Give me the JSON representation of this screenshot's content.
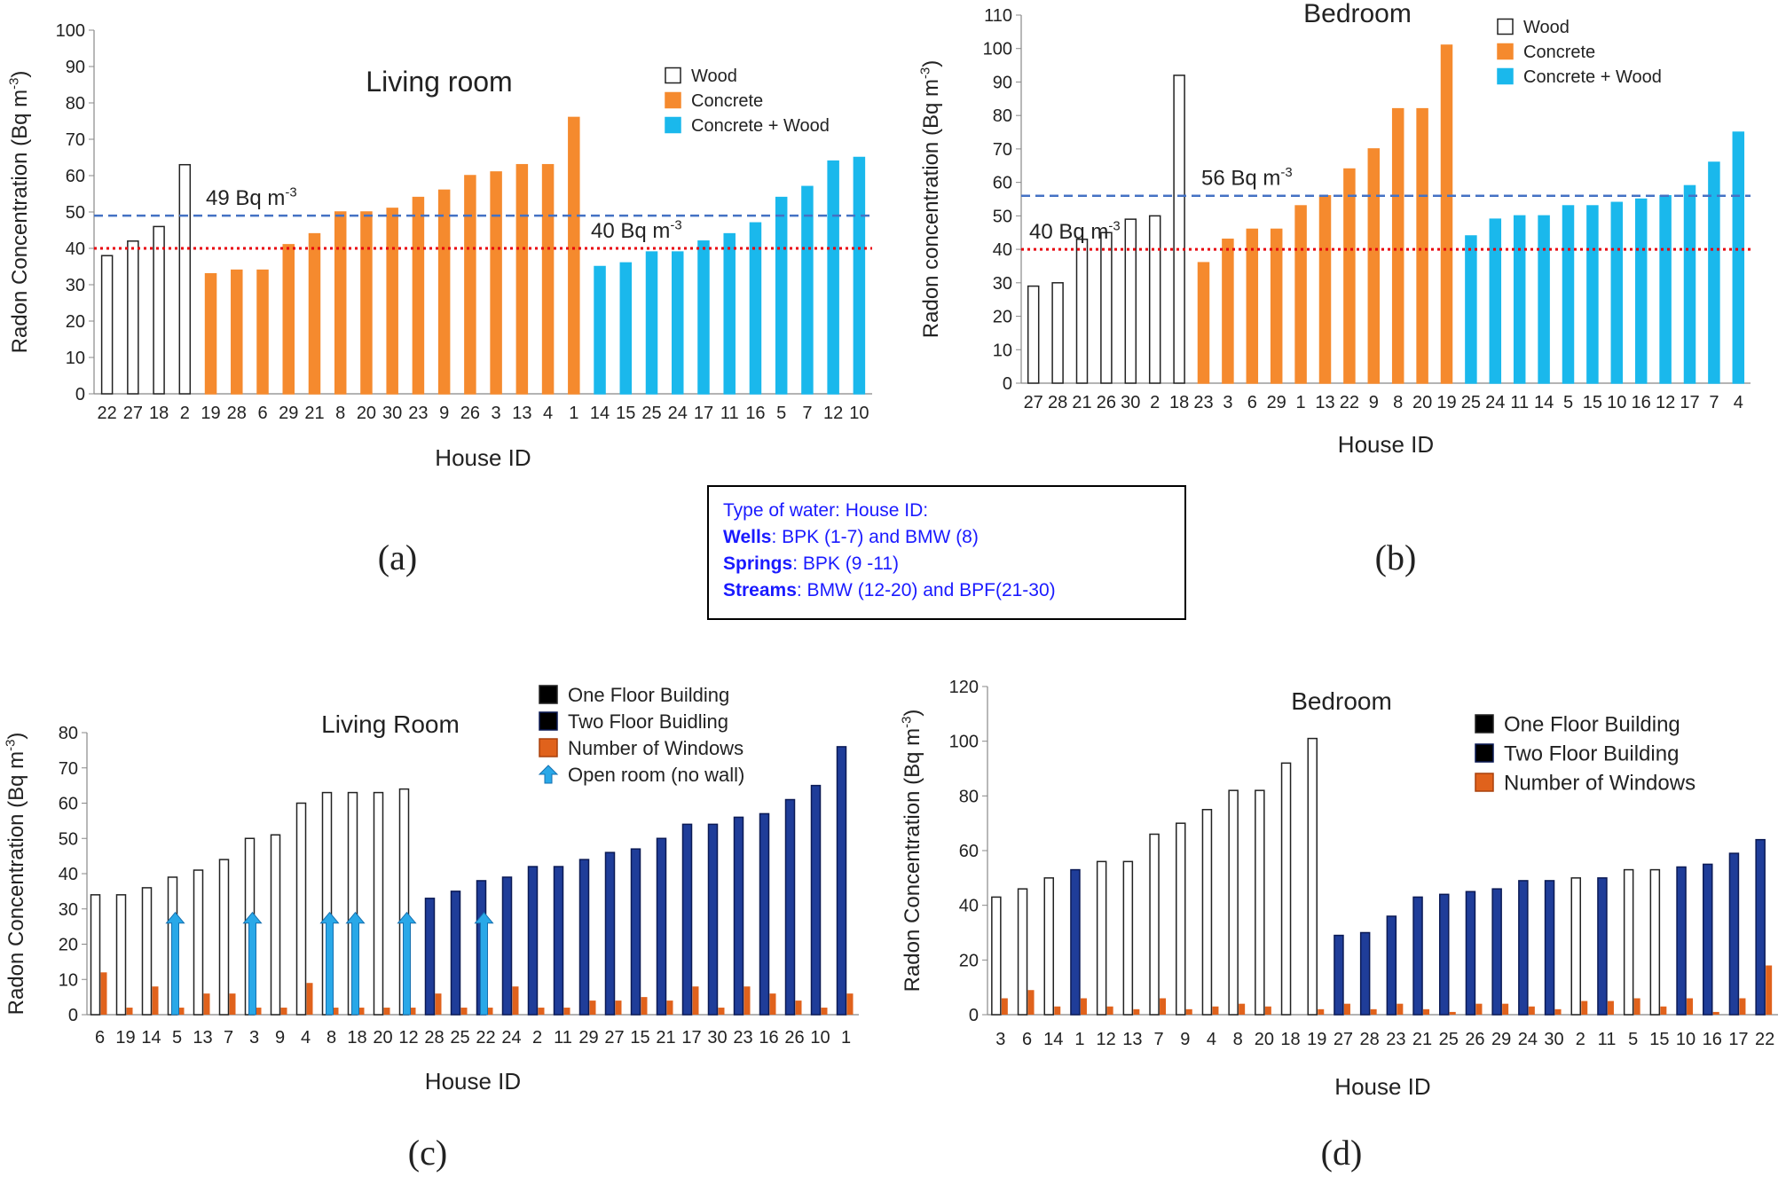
{
  "info_box": {
    "line1": "Type of water: House ID:",
    "wells_label": "Wells",
    "wells_text": ": BPK (1-7) and BMW (8)",
    "springs_label": "Springs",
    "springs_text": ": BPK (9 -11)",
    "streams_label": "Streams",
    "streams_text": ": BMW (12-20) and BPF(21-30)"
  },
  "colors": {
    "wood": "#ffffff",
    "concrete": "#f58a2e",
    "concrete_wood": "#1ab8ec",
    "one_floor": "#ffffff",
    "two_floor": "#1f3d99",
    "windows": "#e0621c",
    "arrow": "#29a8e8",
    "ref_red": "#e8000b",
    "ref_blue": "#4472c4"
  },
  "chart_data": [
    {
      "id": "a",
      "type": "bar",
      "panel_label": "(a)",
      "title": "Living room",
      "xlabel": "House ID",
      "ylabel": "Radon Concentration (Bq m",
      "ylabel_sup": "-3",
      "ylabel_end": ")",
      "ylim": [
        0,
        100
      ],
      "ytick_step": 10,
      "categories": [
        "22",
        "27",
        "18",
        "2",
        "19",
        "28",
        "6",
        "29",
        "21",
        "8",
        "20",
        "30",
        "23",
        "9",
        "26",
        "3",
        "13",
        "4",
        "1",
        "14",
        "15",
        "25",
        "24",
        "17",
        "11",
        "16",
        "5",
        "7",
        "12",
        "10"
      ],
      "values": [
        38,
        42,
        46,
        63,
        33,
        34,
        34,
        41,
        44,
        50,
        50,
        51,
        54,
        56,
        60,
        61,
        63,
        63,
        76,
        35,
        36,
        39,
        39,
        42,
        44,
        47,
        54,
        57,
        64,
        65
      ],
      "groups": [
        "wood",
        "wood",
        "wood",
        "wood",
        "concrete",
        "concrete",
        "concrete",
        "concrete",
        "concrete",
        "concrete",
        "concrete",
        "concrete",
        "concrete",
        "concrete",
        "concrete",
        "concrete",
        "concrete",
        "concrete",
        "concrete",
        "concrete_wood",
        "concrete_wood",
        "concrete_wood",
        "concrete_wood",
        "concrete_wood",
        "concrete_wood",
        "concrete_wood",
        "concrete_wood",
        "concrete_wood",
        "concrete_wood",
        "concrete_wood"
      ],
      "legend": [
        {
          "key": "wood",
          "label": "Wood"
        },
        {
          "key": "concrete",
          "label": "Concrete"
        },
        {
          "key": "concrete_wood",
          "label": "Concrete + Wood"
        }
      ],
      "ref_lines": [
        {
          "value": 49,
          "label": "49 Bq m",
          "sup": "-3",
          "style": "blue"
        },
        {
          "value": 40,
          "label": "40 Bq m",
          "sup": "-3",
          "style": "red"
        }
      ]
    },
    {
      "id": "b",
      "type": "bar",
      "panel_label": "(b)",
      "title": "Bedroom",
      "xlabel": "House ID",
      "ylabel": "Radon concentration (Bq m",
      "ylabel_sup": "-3",
      "ylabel_end": ")",
      "ylim": [
        0,
        110
      ],
      "ytick_step": 10,
      "categories": [
        "27",
        "28",
        "21",
        "26",
        "30",
        "2",
        "18",
        "23",
        "3",
        "6",
        "29",
        "1",
        "13",
        "22",
        "9",
        "8",
        "20",
        "19",
        "25",
        "24",
        "11",
        "14",
        "5",
        "15",
        "10",
        "16",
        "12",
        "17",
        "7",
        "4"
      ],
      "values": [
        29,
        30,
        43,
        45,
        49,
        50,
        92,
        36,
        43,
        46,
        46,
        53,
        56,
        64,
        70,
        82,
        82,
        101,
        44,
        49,
        50,
        50,
        53,
        53,
        54,
        55,
        56,
        59,
        66,
        75
      ],
      "groups": [
        "wood",
        "wood",
        "wood",
        "wood",
        "wood",
        "wood",
        "wood",
        "concrete",
        "concrete",
        "concrete",
        "concrete",
        "concrete",
        "concrete",
        "concrete",
        "concrete",
        "concrete",
        "concrete",
        "concrete",
        "concrete_wood",
        "concrete_wood",
        "concrete_wood",
        "concrete_wood",
        "concrete_wood",
        "concrete_wood",
        "concrete_wood",
        "concrete_wood",
        "concrete_wood",
        "concrete_wood",
        "concrete_wood",
        "concrete_wood"
      ],
      "legend": [
        {
          "key": "wood",
          "label": "Wood"
        },
        {
          "key": "concrete",
          "label": "Concrete"
        },
        {
          "key": "concrete_wood",
          "label": "Concrete + Wood"
        }
      ],
      "ref_lines": [
        {
          "value": 56,
          "label": "56 Bq m",
          "sup": "-3",
          "style": "blue"
        },
        {
          "value": 40,
          "label": "40 Bq m",
          "sup": "-3",
          "style": "red"
        }
      ]
    },
    {
      "id": "c",
      "type": "bar",
      "panel_label": "(c)",
      "title": "Living Room",
      "xlabel": "House ID",
      "ylabel": "Radon Concentration (Bq m",
      "ylabel_sup": "-3",
      "ylabel_end": ")",
      "ylim": [
        0,
        80
      ],
      "ytick_step": 10,
      "categories": [
        "6",
        "19",
        "14",
        "5",
        "13",
        "7",
        "3",
        "9",
        "4",
        "8",
        "18",
        "20",
        "12",
        "28",
        "25",
        "22",
        "24",
        "2",
        "11",
        "29",
        "27",
        "15",
        "21",
        "17",
        "30",
        "23",
        "16",
        "26",
        "10",
        "1"
      ],
      "values": [
        34,
        34,
        36,
        39,
        41,
        44,
        50,
        51,
        60,
        63,
        63,
        63,
        64,
        33,
        35,
        38,
        39,
        42,
        42,
        44,
        46,
        47,
        50,
        54,
        54,
        56,
        57,
        61,
        65,
        76
      ],
      "floors": [
        "one",
        "one",
        "one",
        "one",
        "one",
        "one",
        "one",
        "one",
        "one",
        "one",
        "one",
        "one",
        "one",
        "two",
        "two",
        "two",
        "two",
        "two",
        "two",
        "two",
        "two",
        "two",
        "two",
        "two",
        "two",
        "two",
        "two",
        "two",
        "two",
        "two"
      ],
      "windows": [
        12,
        2,
        8,
        2,
        6,
        6,
        2,
        2,
        9,
        2,
        2,
        2,
        2,
        6,
        2,
        2,
        8,
        2,
        2,
        4,
        4,
        5,
        4,
        8,
        2,
        8,
        6,
        4,
        2,
        6
      ],
      "open_room": [
        "5",
        "3",
        "8",
        "18",
        "12",
        "22"
      ],
      "open_room_value": 29,
      "legend": [
        {
          "key": "one",
          "label": "One Floor Building"
        },
        {
          "key": "two",
          "label": "Two Floor Buidling"
        },
        {
          "key": "windows",
          "label": "Number of Windows"
        },
        {
          "key": "arrow",
          "label": "Open room (no wall)"
        }
      ]
    },
    {
      "id": "d",
      "type": "bar",
      "panel_label": "(d)",
      "title": "Bedroom",
      "xlabel": "House ID",
      "ylabel": "Radon Concentration (Bq m",
      "ylabel_sup": "-3",
      "ylabel_end": ")",
      "ylim": [
        0,
        120
      ],
      "ytick_step": 20,
      "categories": [
        "3",
        "6",
        "14",
        "1",
        "12",
        "13",
        "7",
        "9",
        "4",
        "8",
        "20",
        "18",
        "19",
        "27",
        "28",
        "23",
        "21",
        "25",
        "26",
        "29",
        "24",
        "30",
        "2",
        "11",
        "5",
        "15",
        "10",
        "16",
        "17",
        "22"
      ],
      "values": [
        43,
        46,
        50,
        53,
        56,
        56,
        66,
        70,
        75,
        82,
        82,
        92,
        101,
        29,
        30,
        36,
        43,
        44,
        45,
        46,
        49,
        49,
        50,
        50,
        53,
        53,
        54,
        55,
        59,
        64
      ],
      "floors": [
        "one",
        "one",
        "one",
        "two",
        "one",
        "one",
        "one",
        "one",
        "one",
        "one",
        "one",
        "one",
        "one",
        "two",
        "two",
        "two",
        "two",
        "two",
        "two",
        "two",
        "two",
        "two",
        "one",
        "two",
        "one",
        "one",
        "two",
        "two",
        "two",
        "two"
      ],
      "windows": [
        6,
        9,
        3,
        6,
        3,
        2,
        6,
        2,
        3,
        4,
        3,
        0,
        2,
        4,
        2,
        4,
        2,
        1,
        4,
        4,
        3,
        2,
        5,
        5,
        6,
        3,
        6,
        1,
        6,
        18
      ],
      "legend": [
        {
          "key": "one",
          "label": "One Floor Building"
        },
        {
          "key": "two",
          "label": "Two Floor Building"
        },
        {
          "key": "windows",
          "label": "Number of Windows"
        }
      ]
    }
  ]
}
